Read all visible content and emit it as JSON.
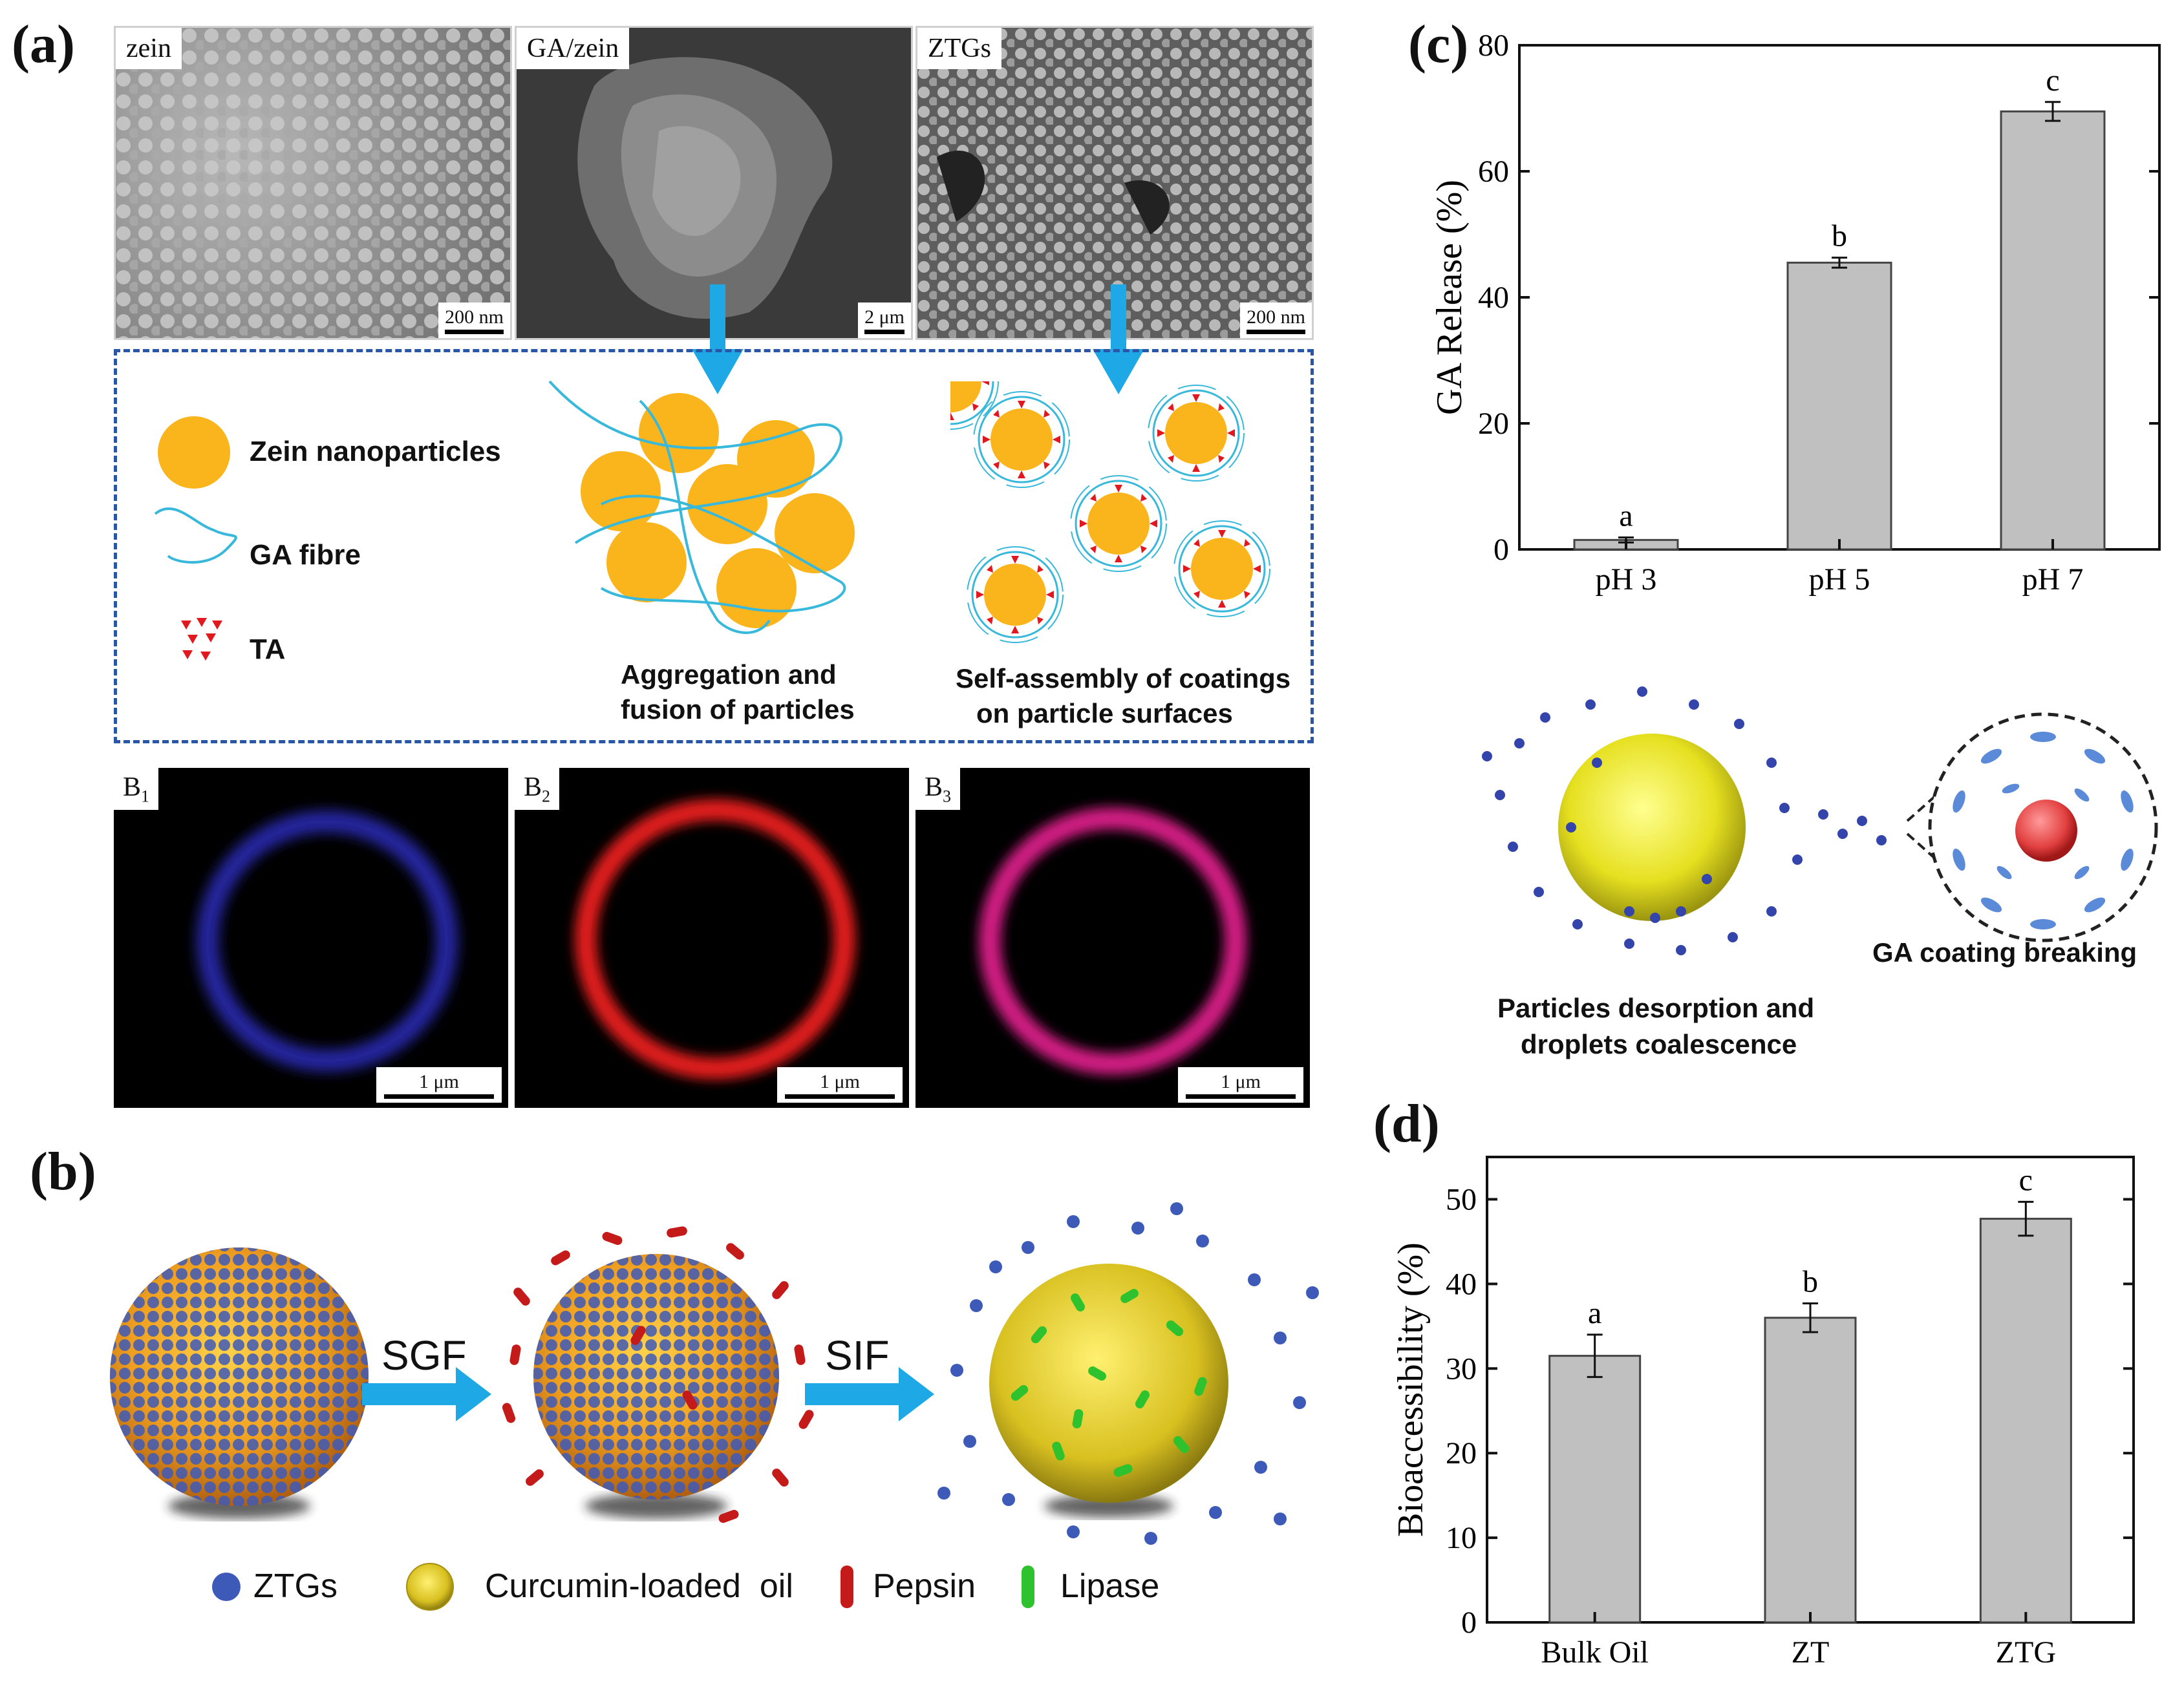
{
  "panel_labels": {
    "a": "(a)",
    "b": "(b)",
    "c": "(c)",
    "d": "(d)"
  },
  "panel_a": {
    "sem_images": [
      {
        "label": "zein",
        "scale": "200 nm"
      },
      {
        "label": "GA/zein",
        "scale": "2 μm"
      },
      {
        "label": "ZTGs",
        "scale": "200 nm"
      }
    ],
    "scheme": {
      "legend_zein": "Zein nanoparticles",
      "legend_ga": "GA fibre",
      "legend_ta": "TA",
      "caption_aggregation_1": "Aggregation and",
      "caption_aggregation_2": "fusion of particles",
      "caption_selfassembly_1": "Self-assembly of coatings",
      "caption_selfassembly_2": "on particle surfaces"
    },
    "fluorescence_images": [
      {
        "label": "B",
        "sub": "1",
        "scale": "1 μm",
        "color": "#2020a0"
      },
      {
        "label": "B",
        "sub": "2",
        "scale": "1 μm",
        "color": "#d01818"
      },
      {
        "label": "B",
        "sub": "3",
        "scale": "1 μm",
        "color": "#c8187a"
      }
    ]
  },
  "panel_b": {
    "arrow1": "SGF",
    "arrow2": "SIF",
    "legend": {
      "ztgs": "ZTGs",
      "oil": "Curcumin-loaded  oil",
      "pepsin": "Pepsin",
      "lipase": "Lipase"
    }
  },
  "panel_c_scheme": {
    "caption_left_1": "Particles desorption and",
    "caption_left_2": "droplets coalescence",
    "caption_right": "GA coating breaking"
  },
  "chart_data": [
    {
      "id": "c",
      "type": "bar",
      "categories": [
        "pH 3",
        "pH 5",
        "pH 7"
      ],
      "values": [
        1.5,
        45.5,
        69.5
      ],
      "errors": [
        0.4,
        0.8,
        1.5
      ],
      "letters": [
        "a",
        "b",
        "c"
      ],
      "ylabel": "GA Release (%)",
      "xlabel": "",
      "ylim": [
        0,
        80
      ],
      "yticks": [
        0,
        20,
        40,
        60,
        80
      ],
      "bar_color": "#c0c0c0"
    },
    {
      "id": "d",
      "type": "bar",
      "categories": [
        "Bulk Oil",
        "ZT",
        "ZTG"
      ],
      "values": [
        31.5,
        36,
        47.7
      ],
      "errors": [
        2.5,
        1.7,
        2.0
      ],
      "letters": [
        "a",
        "b",
        "c"
      ],
      "ylabel": "Bioaccessibility (%)",
      "xlabel": "",
      "ylim": [
        0,
        55
      ],
      "yticks": [
        0,
        10,
        20,
        30,
        40,
        50
      ],
      "bar_color": "#c0c0c0"
    }
  ]
}
